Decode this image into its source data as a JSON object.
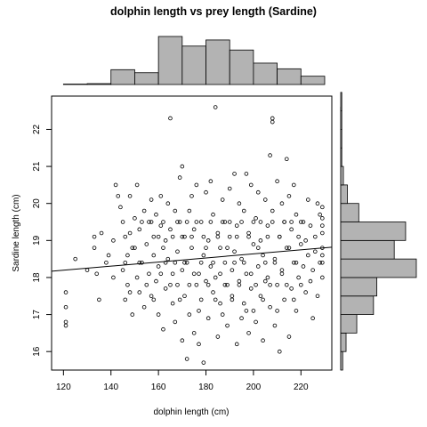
{
  "chart_data": {
    "type": "scatter",
    "title": "dolphin length vs prey length (Sardine)",
    "xlabel": "dolphin length (cm)",
    "ylabel": "Sardine length (cm)",
    "xlim": [
      115,
      233
    ],
    "ylim": [
      15.5,
      22.9
    ],
    "x_ticks": [
      120,
      140,
      160,
      180,
      200,
      220
    ],
    "y_ticks": [
      16,
      17,
      18,
      19,
      20,
      21,
      22
    ],
    "grid": false,
    "colors": {
      "hist_fill": "#b3b3b3",
      "points": "#000000"
    },
    "points": [
      [
        121,
        17.6
      ],
      [
        121,
        17.2
      ],
      [
        121,
        16.8
      ],
      [
        121,
        16.7
      ],
      [
        125,
        18.5
      ],
      [
        130,
        18.2
      ],
      [
        133,
        19.1
      ],
      [
        133,
        18.8
      ],
      [
        134,
        18.1
      ],
      [
        135,
        17.4
      ],
      [
        136,
        19.2
      ],
      [
        138,
        18.4
      ],
      [
        139,
        18.6
      ],
      [
        141,
        18.0
      ],
      [
        141,
        19.0
      ],
      [
        142,
        20.5
      ],
      [
        143,
        20.2
      ],
      [
        144,
        19.9
      ],
      [
        145,
        19.5
      ],
      [
        145,
        18.2
      ],
      [
        146,
        17.4
      ],
      [
        147,
        18.6
      ],
      [
        147,
        17.8
      ],
      [
        148,
        20.2
      ],
      [
        148,
        19.2
      ],
      [
        149,
        18.8
      ],
      [
        149,
        17.0
      ],
      [
        150,
        19.6
      ],
      [
        151,
        18.0
      ],
      [
        151,
        20.5
      ],
      [
        152,
        19.3
      ],
      [
        152,
        17.6
      ],
      [
        153,
        18.4
      ],
      [
        154,
        19.8
      ],
      [
        154,
        17.2
      ],
      [
        155,
        18.9
      ],
      [
        156,
        19.5
      ],
      [
        156,
        18.1
      ],
      [
        157,
        17.5
      ],
      [
        157,
        20.1
      ],
      [
        158,
        19.1
      ],
      [
        158,
        18.6
      ],
      [
        159,
        17.9
      ],
      [
        159,
        19.7
      ],
      [
        160,
        18.3
      ],
      [
        160,
        17.0
      ],
      [
        161,
        20.2
      ],
      [
        161,
        19.4
      ],
      [
        162,
        18.8
      ],
      [
        162,
        16.6
      ],
      [
        163,
        19.0
      ],
      [
        163,
        17.7
      ],
      [
        164,
        18.5
      ],
      [
        164,
        20.0
      ],
      [
        165,
        22.3
      ],
      [
        165,
        19.3
      ],
      [
        166,
        18.1
      ],
      [
        166,
        17.3
      ],
      [
        167,
        16.8
      ],
      [
        167,
        19.8
      ],
      [
        168,
        18.7
      ],
      [
        168,
        17.8
      ],
      [
        169,
        20.7
      ],
      [
        169,
        19.5
      ],
      [
        170,
        21.0
      ],
      [
        170,
        18.2
      ],
      [
        170,
        16.3
      ],
      [
        171,
        17.5
      ],
      [
        171,
        19.1
      ],
      [
        172,
        15.8
      ],
      [
        172,
        18.4
      ],
      [
        173,
        19.8
      ],
      [
        173,
        17.0
      ],
      [
        174,
        20.2
      ],
      [
        174,
        18.8
      ],
      [
        175,
        16.5
      ],
      [
        175,
        19.3
      ],
      [
        176,
        17.8
      ],
      [
        176,
        20.5
      ],
      [
        177,
        18.1
      ],
      [
        177,
        16.2
      ],
      [
        178,
        19.5
      ],
      [
        178,
        17.4
      ],
      [
        179,
        15.7
      ],
      [
        179,
        18.6
      ],
      [
        180,
        20.3
      ],
      [
        180,
        17.9
      ],
      [
        181,
        19.0
      ],
      [
        181,
        16.9
      ],
      [
        182,
        18.3
      ],
      [
        182,
        20.6
      ],
      [
        183,
        17.6
      ],
      [
        183,
        19.7
      ],
      [
        184,
        22.6
      ],
      [
        184,
        18.0
      ],
      [
        185,
        16.4
      ],
      [
        185,
        19.2
      ],
      [
        186,
        17.3
      ],
      [
        186,
        18.8
      ],
      [
        187,
        20.1
      ],
      [
        187,
        17.0
      ],
      [
        188,
        19.5
      ],
      [
        188,
        18.4
      ],
      [
        189,
        16.7
      ],
      [
        189,
        17.8
      ],
      [
        190,
        20.4
      ],
      [
        190,
        19.1
      ],
      [
        191,
        18.2
      ],
      [
        191,
        17.5
      ],
      [
        192,
        20.8
      ],
      [
        192,
        18.7
      ],
      [
        193,
        16.2
      ],
      [
        193,
        19.4
      ],
      [
        194,
        17.9
      ],
      [
        194,
        20.0
      ],
      [
        195,
        18.5
      ],
      [
        195,
        16.9
      ],
      [
        196,
        19.8
      ],
      [
        196,
        17.3
      ],
      [
        197,
        20.8
      ],
      [
        197,
        18.1
      ],
      [
        198,
        19.2
      ],
      [
        198,
        16.5
      ],
      [
        199,
        17.7
      ],
      [
        199,
        20.5
      ],
      [
        200,
        18.9
      ],
      [
        200,
        17.1
      ],
      [
        201,
        19.6
      ],
      [
        201,
        16.8
      ],
      [
        202,
        18.3
      ],
      [
        202,
        20.3
      ],
      [
        203,
        17.5
      ],
      [
        203,
        19.0
      ],
      [
        204,
        16.3
      ],
      [
        204,
        18.6
      ],
      [
        205,
        20.1
      ],
      [
        205,
        17.9
      ],
      [
        206,
        19.4
      ],
      [
        206,
        18.0
      ],
      [
        207,
        21.3
      ],
      [
        207,
        17.2
      ],
      [
        208,
        22.3
      ],
      [
        208,
        22.2
      ],
      [
        208,
        19.8
      ],
      [
        209,
        18.5
      ],
      [
        209,
        16.7
      ],
      [
        210,
        20.6
      ],
      [
        210,
        17.8
      ],
      [
        211,
        19.1
      ],
      [
        211,
        16.0
      ],
      [
        212,
        18.2
      ],
      [
        212,
        20.0
      ],
      [
        213,
        17.4
      ],
      [
        213,
        19.5
      ],
      [
        214,
        21.2
      ],
      [
        214,
        18.8
      ],
      [
        215,
        16.4
      ],
      [
        215,
        20.2
      ],
      [
        216,
        17.7
      ],
      [
        216,
        19.3
      ],
      [
        217,
        18.4
      ],
      [
        217,
        20.5
      ],
      [
        218,
        17.1
      ],
      [
        218,
        19.7
      ],
      [
        219,
        18.0
      ],
      [
        220,
        18.9
      ],
      [
        220,
        19.5
      ],
      [
        221,
        18.3
      ],
      [
        222,
        19.0
      ],
      [
        222,
        17.6
      ],
      [
        223,
        20.1
      ],
      [
        223,
        18.6
      ],
      [
        224,
        17.9
      ],
      [
        224,
        19.4
      ],
      [
        225,
        18.2
      ],
      [
        225,
        16.9
      ],
      [
        226,
        19.1
      ],
      [
        226,
        18.7
      ],
      [
        227,
        17.5
      ],
      [
        227,
        20.0
      ],
      [
        228,
        18.4
      ],
      [
        228,
        19.7
      ],
      [
        229,
        19.6
      ],
      [
        229,
        18.8
      ],
      [
        229,
        19.9
      ],
      [
        229,
        18.0
      ],
      [
        229,
        19.2
      ],
      [
        229,
        18.4
      ],
      [
        229,
        19.4
      ],
      [
        229,
        18.6
      ],
      [
        146,
        19.1
      ],
      [
        146,
        18.4
      ],
      [
        148,
        17.6
      ],
      [
        150,
        18.8
      ],
      [
        152,
        18.4
      ],
      [
        153,
        19.5
      ],
      [
        155,
        17.8
      ],
      [
        157,
        19.5
      ],
      [
        158,
        17.4
      ],
      [
        160,
        19.1
      ],
      [
        161,
        18.1
      ],
      [
        162,
        19.5
      ],
      [
        163,
        18.4
      ],
      [
        165,
        17.8
      ],
      [
        166,
        19.1
      ],
      [
        167,
        18.4
      ],
      [
        168,
        19.5
      ],
      [
        169,
        17.4
      ],
      [
        170,
        19.1
      ],
      [
        171,
        18.4
      ],
      [
        172,
        19.5
      ],
      [
        173,
        17.8
      ],
      [
        174,
        19.1
      ],
      [
        175,
        18.1
      ],
      [
        176,
        19.5
      ],
      [
        177,
        17.1
      ],
      [
        178,
        18.4
      ],
      [
        179,
        19.1
      ],
      [
        180,
        18.8
      ],
      [
        181,
        17.8
      ],
      [
        182,
        19.5
      ],
      [
        183,
        18.4
      ],
      [
        184,
        17.4
      ],
      [
        185,
        19.1
      ],
      [
        186,
        18.1
      ],
      [
        187,
        19.5
      ],
      [
        188,
        17.8
      ],
      [
        189,
        18.8
      ],
      [
        190,
        19.5
      ],
      [
        191,
        17.4
      ],
      [
        192,
        18.4
      ],
      [
        193,
        19.1
      ],
      [
        194,
        17.8
      ],
      [
        195,
        19.5
      ],
      [
        196,
        18.4
      ],
      [
        197,
        17.1
      ],
      [
        198,
        19.1
      ],
      [
        199,
        18.1
      ],
      [
        200,
        19.5
      ],
      [
        201,
        17.8
      ],
      [
        202,
        18.8
      ],
      [
        203,
        19.5
      ],
      [
        204,
        17.4
      ],
      [
        205,
        18.4
      ],
      [
        206,
        19.1
      ],
      [
        207,
        17.8
      ],
      [
        208,
        19.5
      ],
      [
        209,
        18.4
      ],
      [
        210,
        17.1
      ],
      [
        211,
        19.1
      ],
      [
        212,
        18.1
      ],
      [
        213,
        19.5
      ],
      [
        214,
        17.8
      ],
      [
        215,
        18.8
      ],
      [
        216,
        19.5
      ],
      [
        217,
        17.4
      ],
      [
        218,
        18.4
      ],
      [
        219,
        19.1
      ],
      [
        220,
        17.8
      ],
      [
        221,
        19.5
      ]
    ],
    "regression_line": {
      "x": [
        115,
        233
      ],
      "y": [
        18.17,
        18.82
      ]
    },
    "x_histogram": {
      "bin_edges": [
        120,
        130,
        140,
        150,
        160,
        170,
        180,
        190,
        200,
        210,
        220,
        230
      ],
      "counts": [
        1,
        2,
        34,
        27,
        110,
        88,
        102,
        79,
        49,
        36,
        19
      ]
    },
    "y_histogram": {
      "bin_edges": [
        15.5,
        16,
        16.5,
        17,
        17.5,
        18,
        18.5,
        19,
        19.5,
        20,
        20.5,
        21,
        21.5,
        22,
        22.5,
        23
      ],
      "counts": [
        3,
        8,
        24,
        49,
        54,
        113,
        80,
        97,
        27,
        10,
        4,
        1,
        0.5,
        0.5,
        0.5
      ]
    }
  }
}
